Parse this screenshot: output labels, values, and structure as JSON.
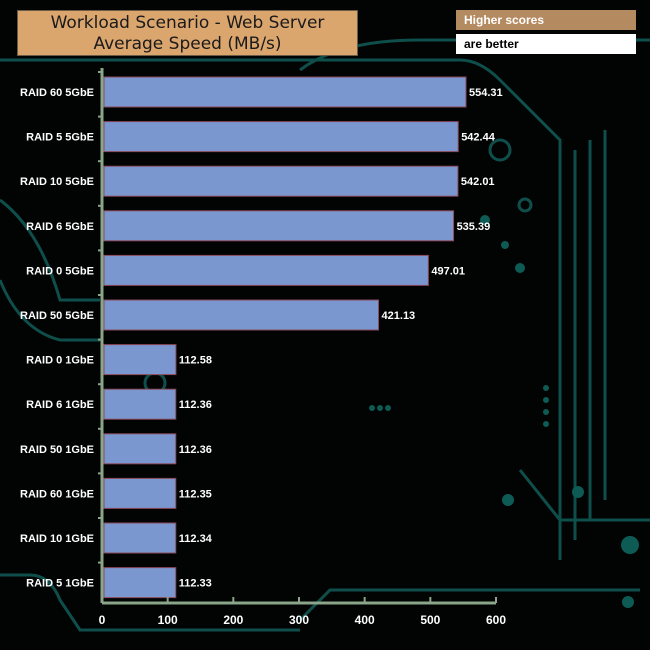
{
  "chart_data": {
    "type": "bar",
    "orientation": "horizontal",
    "title": "Workload Scenario - Web Server",
    "subtitle": "Average Speed (MB/s)",
    "legend_note": [
      "Higher scores",
      "are better"
    ],
    "categories": [
      "RAID 60 5GbE",
      "RAID 5 5GbE",
      "RAID 10 5GbE",
      "RAID 6 5GbE",
      "RAID 0 5GbE",
      "RAID 50 5GbE",
      "RAID 0 1GbE",
      "RAID 6 1GbE",
      "RAID 50 1GbE",
      "RAID 60 1GbE",
      "RAID 10 1GbE",
      "RAID 5 1GbE"
    ],
    "values": [
      554.31,
      542.44,
      542.01,
      535.39,
      497.01,
      421.13,
      112.58,
      112.36,
      112.36,
      112.35,
      112.34,
      112.33
    ],
    "value_labels": [
      "554.31",
      "542.44",
      "542.01",
      "535.39",
      "497.01",
      "421.13",
      "112.58",
      "112.36",
      "112.36",
      "112.35",
      "112.34",
      "112.33"
    ],
    "xlim": [
      0,
      600
    ],
    "xticks": [
      "0",
      "100",
      "200",
      "300",
      "400",
      "500",
      "600"
    ],
    "xlabel": "",
    "ylabel": "",
    "grid": false,
    "colors": {
      "bar": "#7b97d0",
      "bar_border": "#8a4a5a",
      "axis": "#8aa58a",
      "title_bg": "#dba56e",
      "decor": "#0e5a55"
    }
  }
}
